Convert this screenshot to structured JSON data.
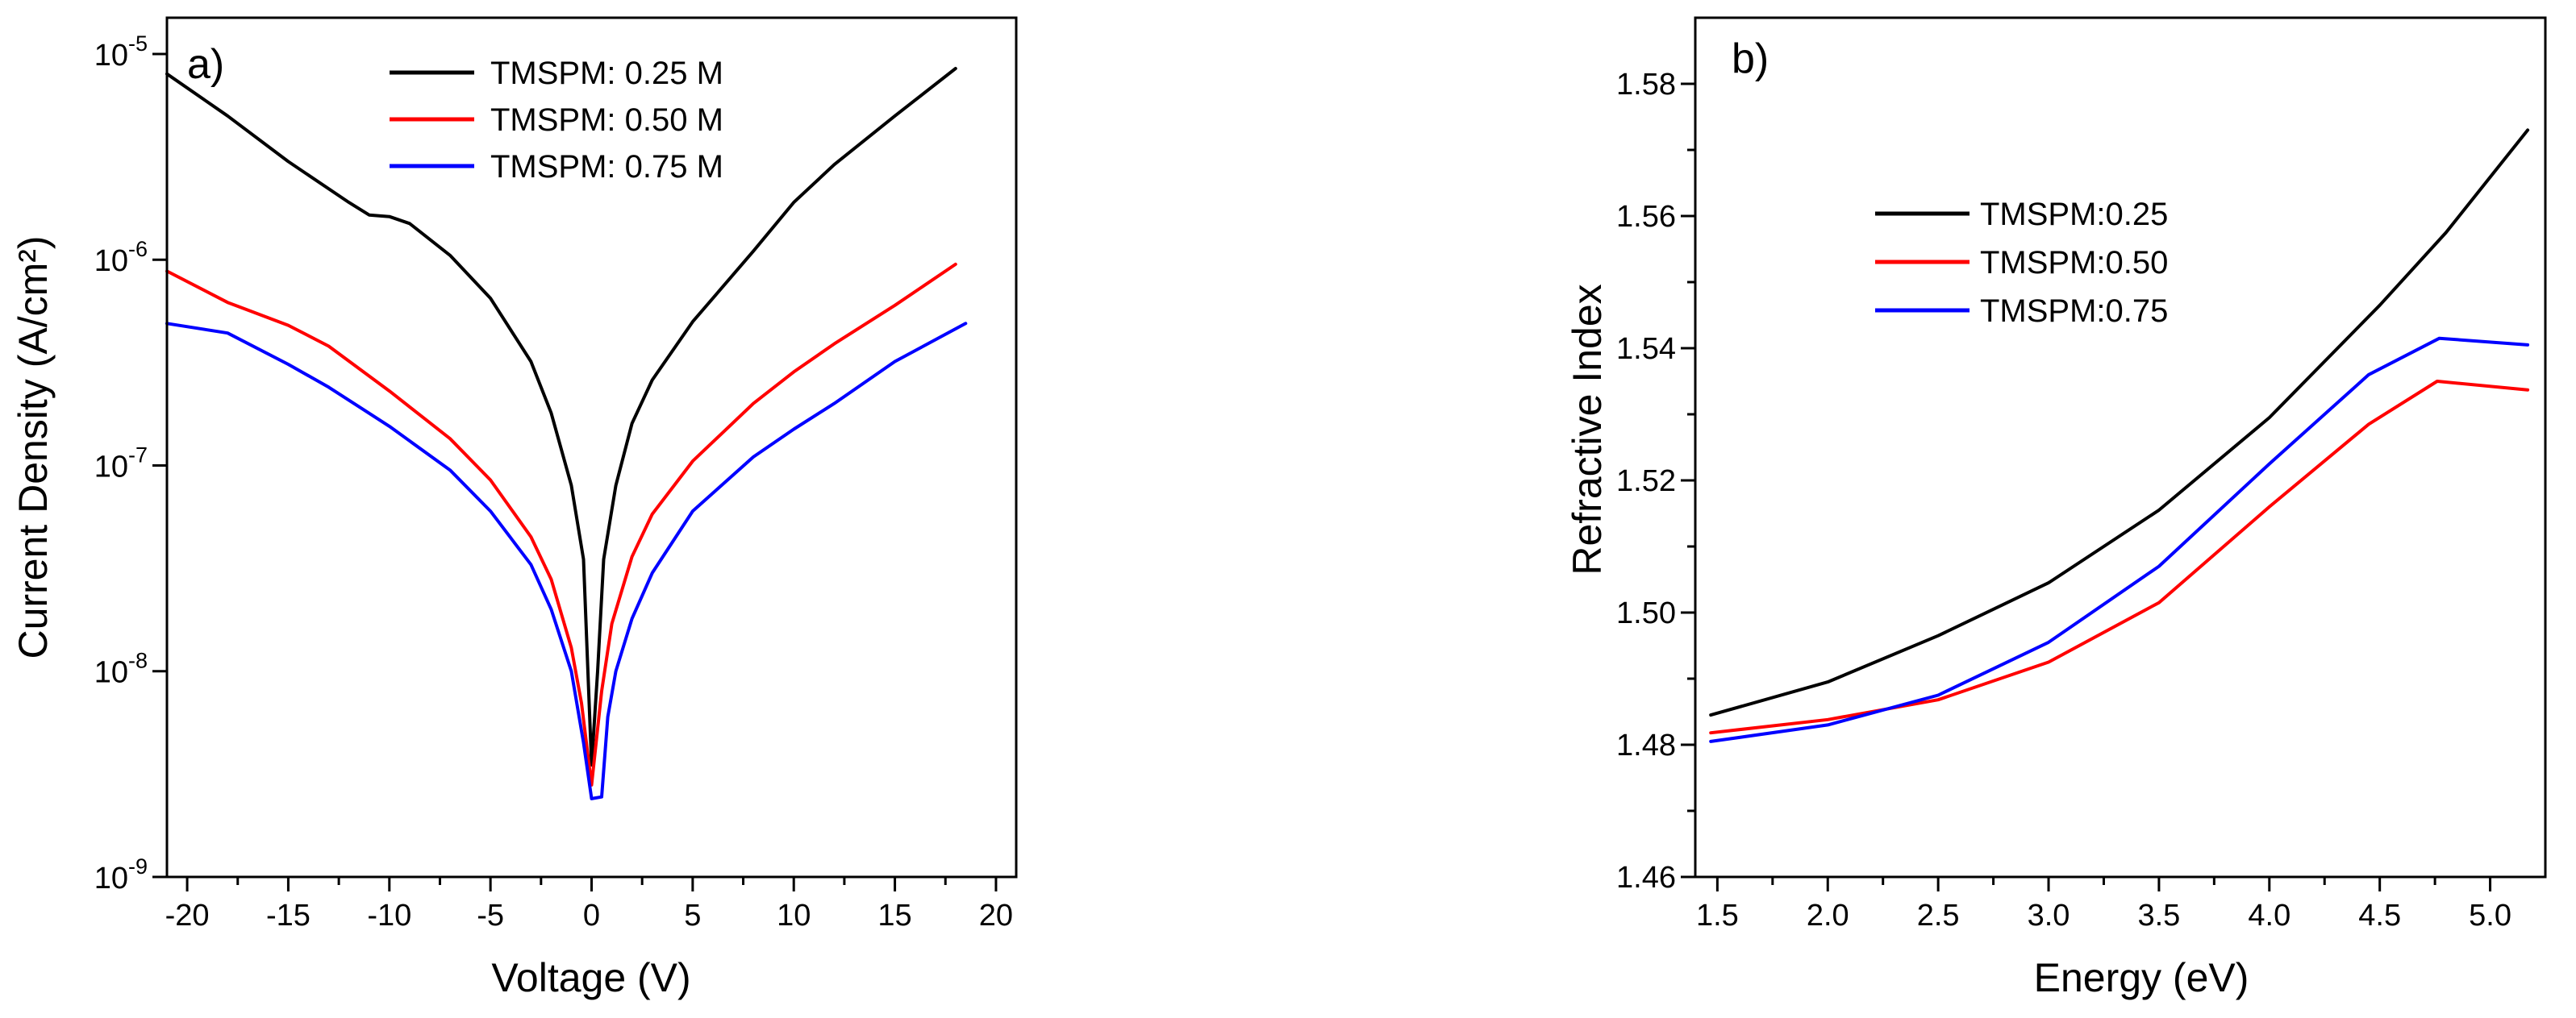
{
  "chart_data": [
    {
      "type": "line",
      "panel_label": "a)",
      "xlabel": "Voltage (V)",
      "ylabel": "Current Density (A/cm²)",
      "y_scale": "log",
      "xlim": [
        -21,
        21
      ],
      "ylim": [
        1e-09,
        1.5e-05
      ],
      "x_ticks": [
        -20,
        -15,
        -10,
        -5,
        0,
        5,
        10,
        15,
        20
      ],
      "x_tick_labels": [
        "-20",
        "-15",
        "-10",
        "-5",
        "0",
        "5",
        "10",
        "15",
        "20"
      ],
      "y_ticks": [
        1e-09,
        1e-08,
        1e-07,
        1e-06,
        1e-05
      ],
      "y_tick_labels": [
        {
          "base": "10",
          "exp": "-9"
        },
        {
          "base": "10",
          "exp": "-8"
        },
        {
          "base": "10",
          "exp": "-7"
        },
        {
          "base": "10",
          "exp": "-6"
        },
        {
          "base": "10",
          "exp": "-5"
        }
      ],
      "legend_position": "top-center",
      "series": [
        {
          "name": "TMSPM: 0.25 M",
          "color": "#000000",
          "points": [
            [
              -21,
              8e-06
            ],
            [
              -18,
              5e-06
            ],
            [
              -15,
              3e-06
            ],
            [
              -12,
              1.9e-06
            ],
            [
              -11,
              1.65e-06
            ],
            [
              -10,
              1.62e-06
            ],
            [
              -9,
              1.5e-06
            ],
            [
              -7,
              1.05e-06
            ],
            [
              -5,
              6.5e-07
            ],
            [
              -3,
              3.2e-07
            ],
            [
              -2,
              1.8e-07
            ],
            [
              -1,
              8e-08
            ],
            [
              -0.4,
              3.5e-08
            ],
            [
              0,
              3.5e-09
            ],
            [
              0.3,
              1e-08
            ],
            [
              0.6,
              3.5e-08
            ],
            [
              1.2,
              8e-08
            ],
            [
              2,
              1.6e-07
            ],
            [
              3,
              2.6e-07
            ],
            [
              5,
              5e-07
            ],
            [
              8,
              1.1e-06
            ],
            [
              10,
              1.9e-06
            ],
            [
              12,
              2.9e-06
            ],
            [
              15,
              5e-06
            ],
            [
              18,
              8.5e-06
            ]
          ]
        },
        {
          "name": "TMSPM: 0.50 M",
          "color": "#ff0000",
          "points": [
            [
              -21,
              8.8e-07
            ],
            [
              -18,
              6.2e-07
            ],
            [
              -15,
              4.8e-07
            ],
            [
              -13,
              3.8e-07
            ],
            [
              -10,
              2.3e-07
            ],
            [
              -7,
              1.35e-07
            ],
            [
              -5,
              8.5e-08
            ],
            [
              -3,
              4.5e-08
            ],
            [
              -2,
              2.8e-08
            ],
            [
              -1,
              1.3e-08
            ],
            [
              -0.5,
              7e-09
            ],
            [
              0,
              2.8e-09
            ],
            [
              0.5,
              8e-09
            ],
            [
              1,
              1.7e-08
            ],
            [
              2,
              3.6e-08
            ],
            [
              3,
              5.8e-08
            ],
            [
              5,
              1.05e-07
            ],
            [
              8,
              2e-07
            ],
            [
              10,
              2.85e-07
            ],
            [
              12,
              3.9e-07
            ],
            [
              15,
              6e-07
            ],
            [
              18,
              9.5e-07
            ]
          ]
        },
        {
          "name": "TMSPM: 0.75 M",
          "color": "#0000ff",
          "points": [
            [
              -21,
              4.9e-07
            ],
            [
              -18,
              4.4e-07
            ],
            [
              -15,
              3.1e-07
            ],
            [
              -13,
              2.4e-07
            ],
            [
              -10,
              1.55e-07
            ],
            [
              -7,
              9.5e-08
            ],
            [
              -5,
              6e-08
            ],
            [
              -3,
              3.3e-08
            ],
            [
              -2,
              2e-08
            ],
            [
              -1,
              1e-08
            ],
            [
              -0.4,
              4.5e-09
            ],
            [
              0,
              2.4e-09
            ],
            [
              0.5,
              2.45e-09
            ],
            [
              0.8,
              6e-09
            ],
            [
              1.2,
              1e-08
            ],
            [
              2,
              1.8e-08
            ],
            [
              3,
              3e-08
            ],
            [
              5,
              6e-08
            ],
            [
              8,
              1.1e-07
            ],
            [
              10,
              1.5e-07
            ],
            [
              12,
              2e-07
            ],
            [
              15,
              3.2e-07
            ],
            [
              18.5,
              4.9e-07
            ]
          ]
        }
      ]
    },
    {
      "type": "line",
      "panel_label": "b)",
      "xlabel": "Energy (eV)",
      "ylabel": "Refractive Index",
      "y_scale": "linear",
      "xlim": [
        1.4,
        5.25
      ],
      "ylim": [
        1.46,
        1.59
      ],
      "x_ticks": [
        1.5,
        2.0,
        2.5,
        3.0,
        3.5,
        4.0,
        4.5,
        5.0
      ],
      "x_tick_labels": [
        "1.5",
        "2.0",
        "2.5",
        "3.0",
        "3.5",
        "4.0",
        "4.5",
        "5.0"
      ],
      "y_ticks": [
        1.46,
        1.48,
        1.5,
        1.52,
        1.54,
        1.56,
        1.58
      ],
      "y_tick_labels": [
        "1.46",
        "1.48",
        "1.50",
        "1.52",
        "1.54",
        "1.56",
        "1.58"
      ],
      "legend_position": "center-left",
      "series": [
        {
          "name": "TMSPM:0.25",
          "color": "#000000",
          "points": [
            [
              1.47,
              1.4845
            ],
            [
              2.0,
              1.4895
            ],
            [
              2.5,
              1.4965
            ],
            [
              3.0,
              1.5045
            ],
            [
              3.5,
              1.5155
            ],
            [
              4.0,
              1.5295
            ],
            [
              4.5,
              1.5465
            ],
            [
              4.8,
              1.5575
            ],
            [
              5.17,
              1.573
            ]
          ]
        },
        {
          "name": "TMSPM:0.50",
          "color": "#ff0000",
          "points": [
            [
              1.47,
              1.4818
            ],
            [
              2.0,
              1.4838
            ],
            [
              2.5,
              1.4868
            ],
            [
              3.0,
              1.4925
            ],
            [
              3.5,
              1.5015
            ],
            [
              4.0,
              1.516
            ],
            [
              4.45,
              1.5285
            ],
            [
              4.76,
              1.535
            ],
            [
              5.17,
              1.5337
            ]
          ]
        },
        {
          "name": "TMSPM:0.75",
          "color": "#0000ff",
          "points": [
            [
              1.47,
              1.4805
            ],
            [
              2.0,
              1.483
            ],
            [
              2.5,
              1.4875
            ],
            [
              3.0,
              1.4955
            ],
            [
              3.5,
              1.507
            ],
            [
              4.0,
              1.5225
            ],
            [
              4.45,
              1.536
            ],
            [
              4.77,
              1.5415
            ],
            [
              5.17,
              1.5405
            ]
          ]
        }
      ]
    }
  ]
}
